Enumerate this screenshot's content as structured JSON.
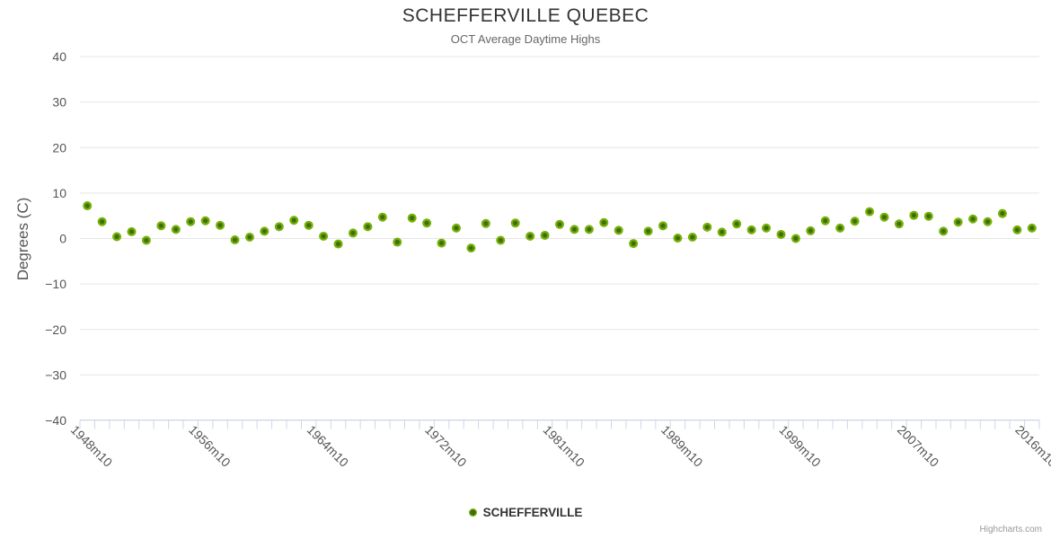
{
  "chart": {
    "title": "SCHEFFERVILLE QUEBEC",
    "subtitle": "OCT Average Daytime Highs",
    "legend_label": "SCHEFFERVILLE",
    "credits": "Highcharts.com"
  },
  "chart_data": {
    "type": "scatter",
    "title": "SCHEFFERVILLE QUEBEC",
    "subtitle": "OCT Average Daytime Highs",
    "xlabel": "",
    "ylabel": "Degrees (C)",
    "ylim": [
      -40,
      40
    ],
    "ytick_interval": 10,
    "grid": true,
    "legend_position": "bottom-center",
    "x_label_step": 8,
    "x_labels_shown": [
      "1948m10",
      "1956m10",
      "1964m10",
      "1972m10",
      "1981m10",
      "1989m10",
      "1999m10",
      "2007m10",
      "2016m10"
    ],
    "categories": [
      "1948m10",
      "1949m10",
      "1950m10",
      "1951m10",
      "1952m10",
      "1953m10",
      "1954m10",
      "1955m10",
      "1956m10",
      "1957m10",
      "1958m10",
      "1959m10",
      "1960m10",
      "1961m10",
      "1962m10",
      "1963m10",
      "1964m10",
      "1965m10",
      "1966m10",
      "1967m10",
      "1968m10",
      "1969m10",
      "1970m10",
      "1971m10",
      "1972m10",
      "1973m10",
      "1974m10",
      "1975m10",
      "1976m10",
      "1977m10",
      "1978m10",
      "1979m10",
      "1981m10",
      "1982m10",
      "1983m10",
      "1984m10",
      "1985m10",
      "1986m10",
      "1987m10",
      "1988m10",
      "1989m10",
      "1990m10",
      "1991m10",
      "1992m10",
      "1993m10",
      "1994m10",
      "1995m10",
      "1996m10",
      "1999m10",
      "2000m10",
      "2001m10",
      "2002m10",
      "2003m10",
      "2004m10",
      "2005m10",
      "2006m10",
      "2007m10",
      "2008m10",
      "2009m10",
      "2010m10",
      "2011m10",
      "2012m10",
      "2013m10",
      "2014m10",
      "2016m10"
    ],
    "series": [
      {
        "name": "SCHEFFERVILLE",
        "marker_color": "#76b007",
        "marker_center_color": "#3e6e0a",
        "values": [
          7.2,
          3.7,
          0.4,
          1.5,
          -0.4,
          2.8,
          2.0,
          3.7,
          3.9,
          2.9,
          -0.3,
          0.3,
          1.6,
          2.6,
          4.0,
          2.9,
          0.5,
          -1.2,
          1.2,
          2.6,
          4.7,
          -0.8,
          4.5,
          3.4,
          -1.0,
          2.3,
          -2.1,
          3.3,
          -0.4,
          3.4,
          0.5,
          0.7,
          3.1,
          2.0,
          2.0,
          3.5,
          1.8,
          -1.1,
          1.6,
          2.8,
          0.1,
          0.3,
          2.5,
          1.4,
          3.2,
          1.9,
          2.3,
          0.9,
          0.0,
          1.7,
          3.9,
          2.3,
          3.8,
          5.9,
          4.7,
          3.2,
          5.1,
          4.9,
          1.6,
          3.6,
          4.3,
          3.7,
          5.5,
          1.9,
          2.3
        ]
      }
    ],
    "colors": {
      "grid_line": "#e6e6e6",
      "axis_line": "#ccd6eb",
      "tick_label": "#555555",
      "title": "#333333",
      "subtitle": "#666666"
    }
  }
}
